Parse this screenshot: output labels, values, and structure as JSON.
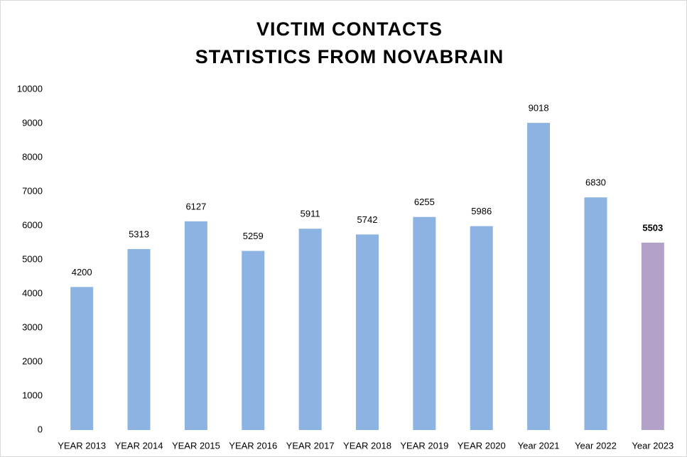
{
  "chart_data": {
    "type": "bar",
    "title": [
      "VICTIM CONTACTS",
      "STATISTICS FROM NOVABRAIN"
    ],
    "categories": [
      "YEAR 2013",
      "YEAR 2014",
      "YEAR 2015",
      "YEAR 2016",
      "YEAR 2017",
      "YEAR 2018",
      "YEAR 2019",
      "YEAR 2020",
      "Year 2021",
      "Year 2022",
      "Year 2023"
    ],
    "values": [
      4200,
      5313,
      6127,
      5259,
      5911,
      5742,
      6255,
      5986,
      9018,
      6830,
      5503
    ],
    "colors": [
      "#8db3e2",
      "#8db3e2",
      "#8db3e2",
      "#8db3e2",
      "#8db3e2",
      "#8db3e2",
      "#8db3e2",
      "#8db3e2",
      "#8db3e2",
      "#8db3e2",
      "#b3a2c7"
    ],
    "ylim": [
      0,
      10000
    ],
    "yticks": [
      0,
      1000,
      2000,
      3000,
      4000,
      5000,
      6000,
      7000,
      8000,
      9000,
      10000
    ],
    "grid": false
  }
}
